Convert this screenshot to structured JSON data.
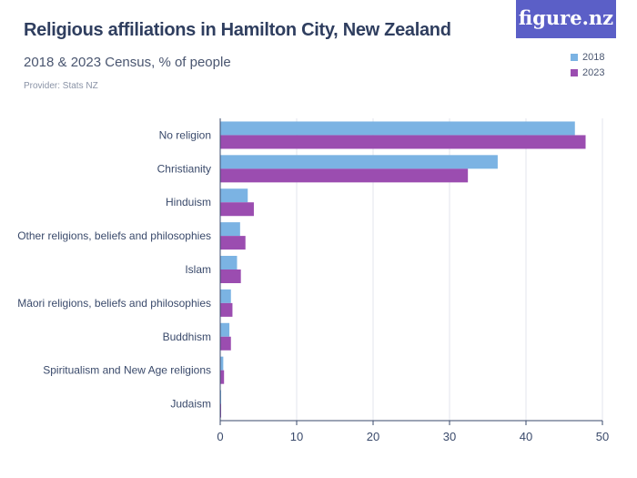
{
  "header": {
    "title": "Religious affiliations in Hamilton City, New Zealand",
    "subtitle": "2018 & 2023 Census, % of people",
    "provider": "Provider: Stats NZ",
    "logo": "figure.nz"
  },
  "colors": {
    "series_2018": "#7bb3e3",
    "series_2023": "#9b4db0",
    "logo_bg": "#5b5fc7",
    "axis": "#3a4a6b",
    "grid": "#e3e6ec"
  },
  "chart_data": {
    "type": "bar",
    "orientation": "horizontal",
    "title": "Religious affiliations in Hamilton City, New Zealand",
    "subtitle": "2018 & 2023 Census, % of people",
    "categories": [
      "No religion",
      "Christianity",
      "Hinduism",
      "Other religions, beliefs and philosophies",
      "Islam",
      "Māori religions, beliefs and philosophies",
      "Buddhism",
      "Spiritualism and New Age religions",
      "Judaism"
    ],
    "series": [
      {
        "name": "2018",
        "values": [
          46.4,
          36.3,
          3.6,
          2.6,
          2.2,
          1.4,
          1.2,
          0.4,
          0.1
        ]
      },
      {
        "name": "2023",
        "values": [
          47.8,
          32.4,
          4.4,
          3.3,
          2.7,
          1.6,
          1.4,
          0.5,
          0.1
        ]
      }
    ],
    "xlim": [
      0,
      50
    ],
    "xticks": [
      0,
      10,
      20,
      30,
      40,
      50
    ],
    "legend_position": "top-right",
    "grid": true
  }
}
